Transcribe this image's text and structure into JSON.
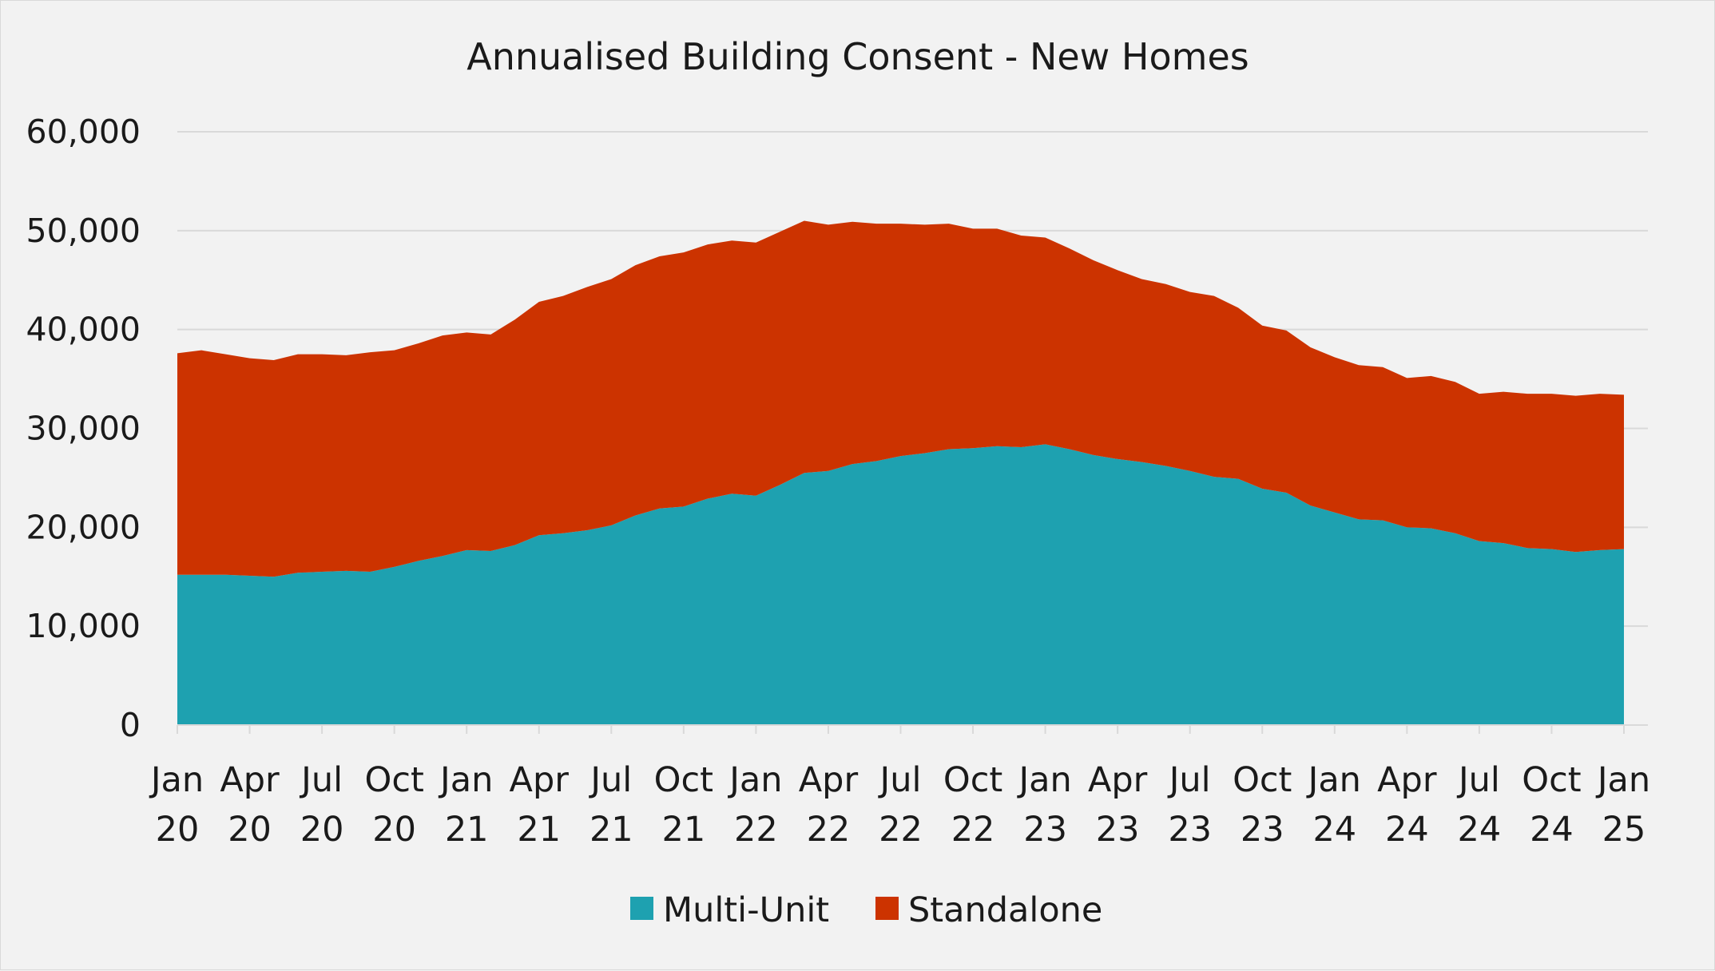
{
  "chart_data": {
    "type": "area",
    "stacked": true,
    "title": "Annualised Building Consent - New Homes",
    "xlabel": "",
    "ylabel": "",
    "ylim": [
      0,
      60000
    ],
    "yticks": [
      0,
      10000,
      20000,
      30000,
      40000,
      50000,
      60000
    ],
    "ytick_labels": [
      "0",
      "10,000",
      "20,000",
      "30,000",
      "40,000",
      "50,000",
      "60,000"
    ],
    "grid": true,
    "legend_position": "bottom",
    "x_count": 61,
    "xtick_index": [
      0,
      3,
      6,
      9,
      12,
      15,
      18,
      21,
      24,
      27,
      30,
      33,
      36,
      39,
      42,
      45,
      48,
      51,
      54,
      57,
      60
    ],
    "xtick_labels": [
      [
        "Jan",
        "20"
      ],
      [
        "Apr",
        "20"
      ],
      [
        "Jul",
        "20"
      ],
      [
        "Oct",
        "20"
      ],
      [
        "Jan",
        "21"
      ],
      [
        "Apr",
        "21"
      ],
      [
        "Jul",
        "21"
      ],
      [
        "Oct",
        "21"
      ],
      [
        "Jan",
        "22"
      ],
      [
        "Apr",
        "22"
      ],
      [
        "Jul",
        "22"
      ],
      [
        "Oct",
        "22"
      ],
      [
        "Jan",
        "23"
      ],
      [
        "Apr",
        "23"
      ],
      [
        "Jul",
        "23"
      ],
      [
        "Oct",
        "23"
      ],
      [
        "Jan",
        "24"
      ],
      [
        "Apr",
        "24"
      ],
      [
        "Jul",
        "24"
      ],
      [
        "Oct",
        "24"
      ],
      [
        "Jan",
        "25"
      ]
    ],
    "series": [
      {
        "name": "Multi-Unit",
        "color": "#1ea1b0",
        "values": [
          15200,
          15200,
          15200,
          15100,
          15000,
          15400,
          15500,
          15600,
          15500,
          16000,
          16600,
          17100,
          17700,
          17600,
          18200,
          19200,
          19400,
          19700,
          20200,
          21200,
          21900,
          22100,
          22900,
          23400,
          23200,
          24300,
          25500,
          25700,
          26400,
          26700,
          27200,
          27500,
          27900,
          28000,
          28200,
          28100,
          28400,
          27900,
          27300,
          26900,
          26600,
          26200,
          25700,
          25100,
          24900,
          23900,
          23500,
          22200,
          21500,
          20800,
          20700,
          20000,
          19900,
          19400,
          18600,
          18400,
          17900,
          17800,
          17500,
          17700,
          17800
        ]
      },
      {
        "name": "Standalone",
        "color": "#cc3300",
        "values": [
          22400,
          22700,
          22300,
          22000,
          21900,
          22100,
          22000,
          21800,
          22200,
          21900,
          22000,
          22300,
          22000,
          21900,
          22800,
          23600,
          24000,
          24600,
          24900,
          25300,
          25500,
          25700,
          25700,
          25600,
          25600,
          25600,
          25500,
          24900,
          24500,
          24000,
          23500,
          23100,
          22800,
          22200,
          22000,
          21400,
          20900,
          20300,
          19700,
          19100,
          18500,
          18400,
          18100,
          18300,
          17300,
          16500,
          16400,
          16000,
          15700,
          15600,
          15500,
          15100,
          15400,
          15300,
          14900,
          15300,
          15600,
          15700,
          15800,
          15800,
          15600
        ]
      }
    ]
  }
}
